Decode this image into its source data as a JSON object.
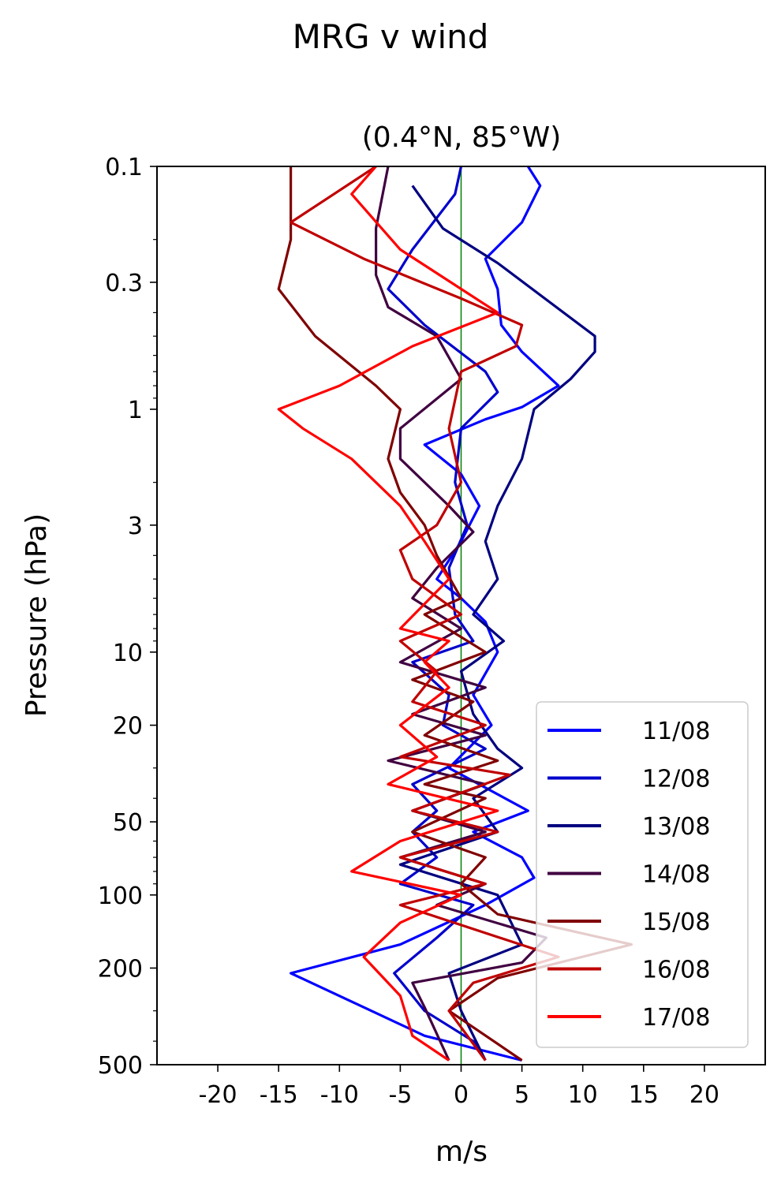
{
  "figure_title": "MRG v wind",
  "chart_data": {
    "type": "line",
    "title": "(0.4°N, 85°W)",
    "xlabel": "m/s",
    "ylabel": "Pressure (hPa)",
    "xlim": [
      -25,
      25
    ],
    "ylim": [
      500,
      0.1
    ],
    "y_scale": "log",
    "x_ticks": [
      -20,
      -15,
      -10,
      -5,
      0,
      5,
      10,
      15,
      20
    ],
    "x_tick_labels": [
      "-20",
      "-15",
      "-10",
      "-5",
      "0",
      "5",
      "10",
      "15",
      "20"
    ],
    "y_ticks": [
      0.1,
      0.3,
      1,
      3,
      10,
      20,
      50,
      100,
      200,
      500
    ],
    "y_tick_labels": [
      "0.1",
      "0.3",
      "1",
      "3",
      "10",
      "20",
      "50",
      "100",
      "200",
      "500"
    ],
    "grid": false,
    "legend_position": "lower-right",
    "zero_line_color": "#008000",
    "series": [
      {
        "name": "11/08",
        "color": "#0000ff",
        "points": [
          [
            5.5,
            0.1
          ],
          [
            6.5,
            0.12
          ],
          [
            5,
            0.17
          ],
          [
            2,
            0.24
          ],
          [
            3,
            0.32
          ],
          [
            3.3,
            0.45
          ],
          [
            5,
            0.58
          ],
          [
            8,
            0.8
          ],
          [
            5,
            0.98
          ],
          [
            2,
            1.1
          ],
          [
            -3,
            1.4
          ],
          [
            0,
            1.85
          ],
          [
            1.5,
            2.5
          ],
          [
            0,
            3.5
          ],
          [
            -2,
            5
          ],
          [
            0,
            6
          ],
          [
            2,
            7.5
          ],
          [
            3,
            10
          ],
          [
            1,
            15
          ],
          [
            2.5,
            20
          ],
          [
            -1,
            30
          ],
          [
            5.5,
            45
          ],
          [
            1,
            55
          ],
          [
            5,
            70
          ],
          [
            6,
            85
          ],
          [
            2,
            110
          ],
          [
            -5,
            160
          ],
          [
            -14,
            210
          ],
          [
            -8,
            290
          ],
          [
            -3,
            380
          ],
          [
            5,
            480
          ]
        ]
      },
      {
        "name": "12/08",
        "color": "#0000cc",
        "points": [
          [
            0,
            0.1
          ],
          [
            -0.5,
            0.13
          ],
          [
            -4,
            0.22
          ],
          [
            -6,
            0.32
          ],
          [
            -3,
            0.45
          ],
          [
            2,
            0.7
          ],
          [
            3,
            0.85
          ],
          [
            0,
            1.2
          ],
          [
            -0.5,
            2
          ],
          [
            0.5,
            3
          ],
          [
            -1,
            4.5
          ],
          [
            -0.5,
            7
          ],
          [
            1,
            9
          ],
          [
            -4,
            11
          ],
          [
            -1,
            15
          ],
          [
            -1.5,
            20
          ],
          [
            2,
            25
          ],
          [
            -4,
            35
          ],
          [
            -2,
            45
          ],
          [
            -4,
            55
          ],
          [
            -2,
            70
          ],
          [
            -5,
            90
          ],
          [
            1,
            110
          ],
          [
            -2,
            150
          ],
          [
            -5.5,
            210
          ],
          [
            -3,
            300
          ],
          [
            1,
            400
          ],
          [
            2,
            480
          ]
        ]
      },
      {
        "name": "13/08",
        "color": "#000080",
        "points": [
          [
            -4,
            0.12
          ],
          [
            -1.5,
            0.18
          ],
          [
            3,
            0.25
          ],
          [
            11,
            0.5
          ],
          [
            11,
            0.58
          ],
          [
            9,
            0.75
          ],
          [
            6,
            1.0
          ],
          [
            5,
            1.6
          ],
          [
            3,
            2.5
          ],
          [
            2,
            3.5
          ],
          [
            3,
            5
          ],
          [
            1,
            7
          ],
          [
            3.5,
            9
          ],
          [
            0,
            12
          ],
          [
            1,
            18
          ],
          [
            3,
            25
          ],
          [
            5,
            30
          ],
          [
            1,
            40
          ],
          [
            3,
            55
          ],
          [
            -5,
            75
          ],
          [
            3,
            100
          ],
          [
            5,
            160
          ],
          [
            -1,
            210
          ],
          [
            0,
            300
          ],
          [
            2,
            480
          ]
        ]
      },
      {
        "name": "14/08",
        "color": "#400040",
        "points": [
          [
            -6,
            0.1
          ],
          [
            -7,
            0.18
          ],
          [
            -7,
            0.28
          ],
          [
            -6,
            0.38
          ],
          [
            -2,
            0.5
          ],
          [
            0,
            0.75
          ],
          [
            -5,
            1.2
          ],
          [
            -5,
            1.6
          ],
          [
            -1,
            2.5
          ],
          [
            1,
            3.2
          ],
          [
            -2,
            4.5
          ],
          [
            -4,
            6
          ],
          [
            0,
            8
          ],
          [
            -5,
            11
          ],
          [
            2,
            14
          ],
          [
            -4,
            18
          ],
          [
            2,
            22
          ],
          [
            -6,
            28
          ],
          [
            2,
            35
          ],
          [
            -4,
            45
          ],
          [
            2,
            55
          ],
          [
            -5,
            70
          ],
          [
            2,
            90
          ],
          [
            -2,
            110
          ],
          [
            7,
            150
          ],
          [
            5,
            190
          ],
          [
            -4,
            230
          ],
          [
            -3,
            290
          ],
          [
            -1,
            480
          ]
        ]
      },
      {
        "name": "15/08",
        "color": "#800000",
        "points": [
          [
            -14,
            0.1
          ],
          [
            -14,
            0.2
          ],
          [
            -15,
            0.32
          ],
          [
            -12,
            0.5
          ],
          [
            -7,
            0.8
          ],
          [
            -5,
            1.0
          ],
          [
            -6,
            1.6
          ],
          [
            -5,
            2.2
          ],
          [
            -3,
            3
          ],
          [
            -2,
            4
          ],
          [
            0,
            6
          ],
          [
            -3,
            7
          ],
          [
            2,
            10
          ],
          [
            -4,
            13
          ],
          [
            1,
            16
          ],
          [
            -3,
            22
          ],
          [
            3,
            28
          ],
          [
            -3,
            35
          ],
          [
            2,
            40
          ],
          [
            -4,
            55
          ],
          [
            2,
            70
          ],
          [
            0,
            90
          ],
          [
            3,
            120
          ],
          [
            14,
            160
          ],
          [
            3,
            220
          ],
          [
            -1,
            300
          ],
          [
            5,
            480
          ]
        ]
      },
      {
        "name": "16/08",
        "color": "#c00000",
        "points": [
          [
            -7,
            0.1
          ],
          [
            -14,
            0.17
          ],
          [
            -8,
            0.24
          ],
          [
            0,
            0.35
          ],
          [
            5,
            0.45
          ],
          [
            4.5,
            0.55
          ],
          [
            0,
            0.7
          ],
          [
            -1,
            1.2
          ],
          [
            0,
            2
          ],
          [
            -2,
            3
          ],
          [
            -5,
            3.8
          ],
          [
            -4,
            5
          ],
          [
            0,
            7
          ],
          [
            -5,
            9
          ],
          [
            -2,
            12
          ],
          [
            -4,
            16
          ],
          [
            2,
            20
          ],
          [
            -5,
            27
          ],
          [
            4,
            32
          ],
          [
            -4,
            45
          ],
          [
            3,
            55
          ],
          [
            -5,
            70
          ],
          [
            2,
            90
          ],
          [
            -5,
            110
          ],
          [
            8,
            180
          ],
          [
            1,
            230
          ],
          [
            -1,
            300
          ],
          [
            2,
            480
          ]
        ]
      },
      {
        "name": "17/08",
        "color": "#ff0000",
        "points": [
          [
            -7,
            0.1
          ],
          [
            -9,
            0.13
          ],
          [
            -5,
            0.22
          ],
          [
            3,
            0.4
          ],
          [
            -4,
            0.55
          ],
          [
            -10,
            0.8
          ],
          [
            -15,
            1.0
          ],
          [
            -13,
            1.2
          ],
          [
            -9,
            1.6
          ],
          [
            -5,
            2.5
          ],
          [
            -3,
            3.5
          ],
          [
            -1,
            5
          ],
          [
            -5,
            8
          ],
          [
            -1,
            9
          ],
          [
            -3,
            11
          ],
          [
            -1,
            14
          ],
          [
            -5,
            20
          ],
          [
            -2,
            27
          ],
          [
            -6,
            35
          ],
          [
            3,
            45
          ],
          [
            -5,
            60
          ],
          [
            -9,
            80
          ],
          [
            0,
            100
          ],
          [
            -5,
            130
          ],
          [
            -8,
            180
          ],
          [
            -5,
            260
          ],
          [
            -4,
            380
          ],
          [
            -1,
            480
          ]
        ]
      }
    ]
  }
}
